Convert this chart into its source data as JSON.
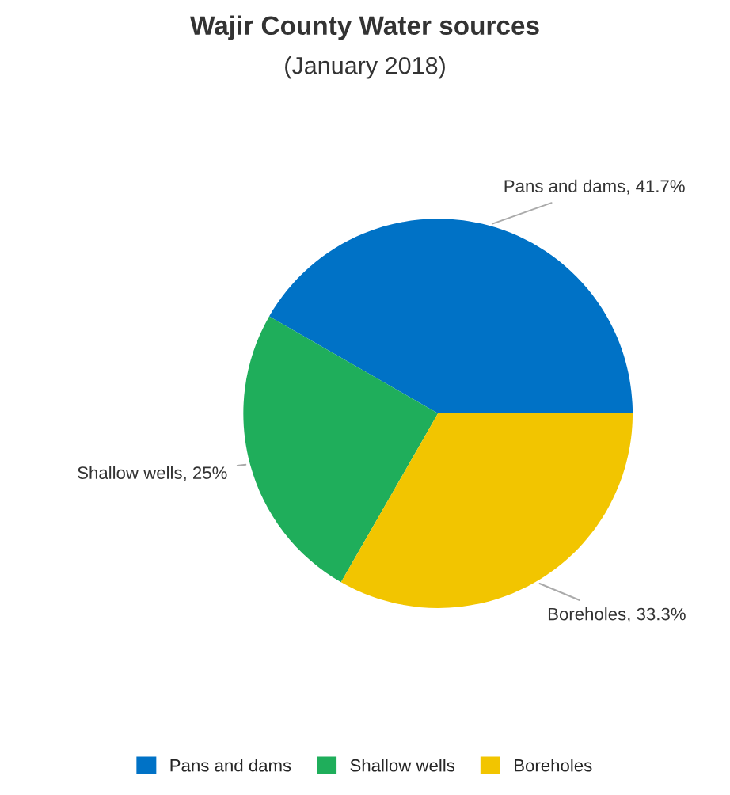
{
  "chart_data": {
    "type": "pie",
    "title": "Wajir County Water sources",
    "subtitle": "(January 2018)",
    "categories": [
      "Pans and dams",
      "Shallow wells",
      "Boreholes"
    ],
    "values": [
      41.7,
      25,
      33.3
    ],
    "value_labels": [
      "Pans and dams, 41.7%",
      "Shallow wells, 25%",
      "Boreholes, 33.3%"
    ],
    "colors": [
      "#0072c6",
      "#1fae5b",
      "#f2c500"
    ],
    "legend": "bottom"
  }
}
